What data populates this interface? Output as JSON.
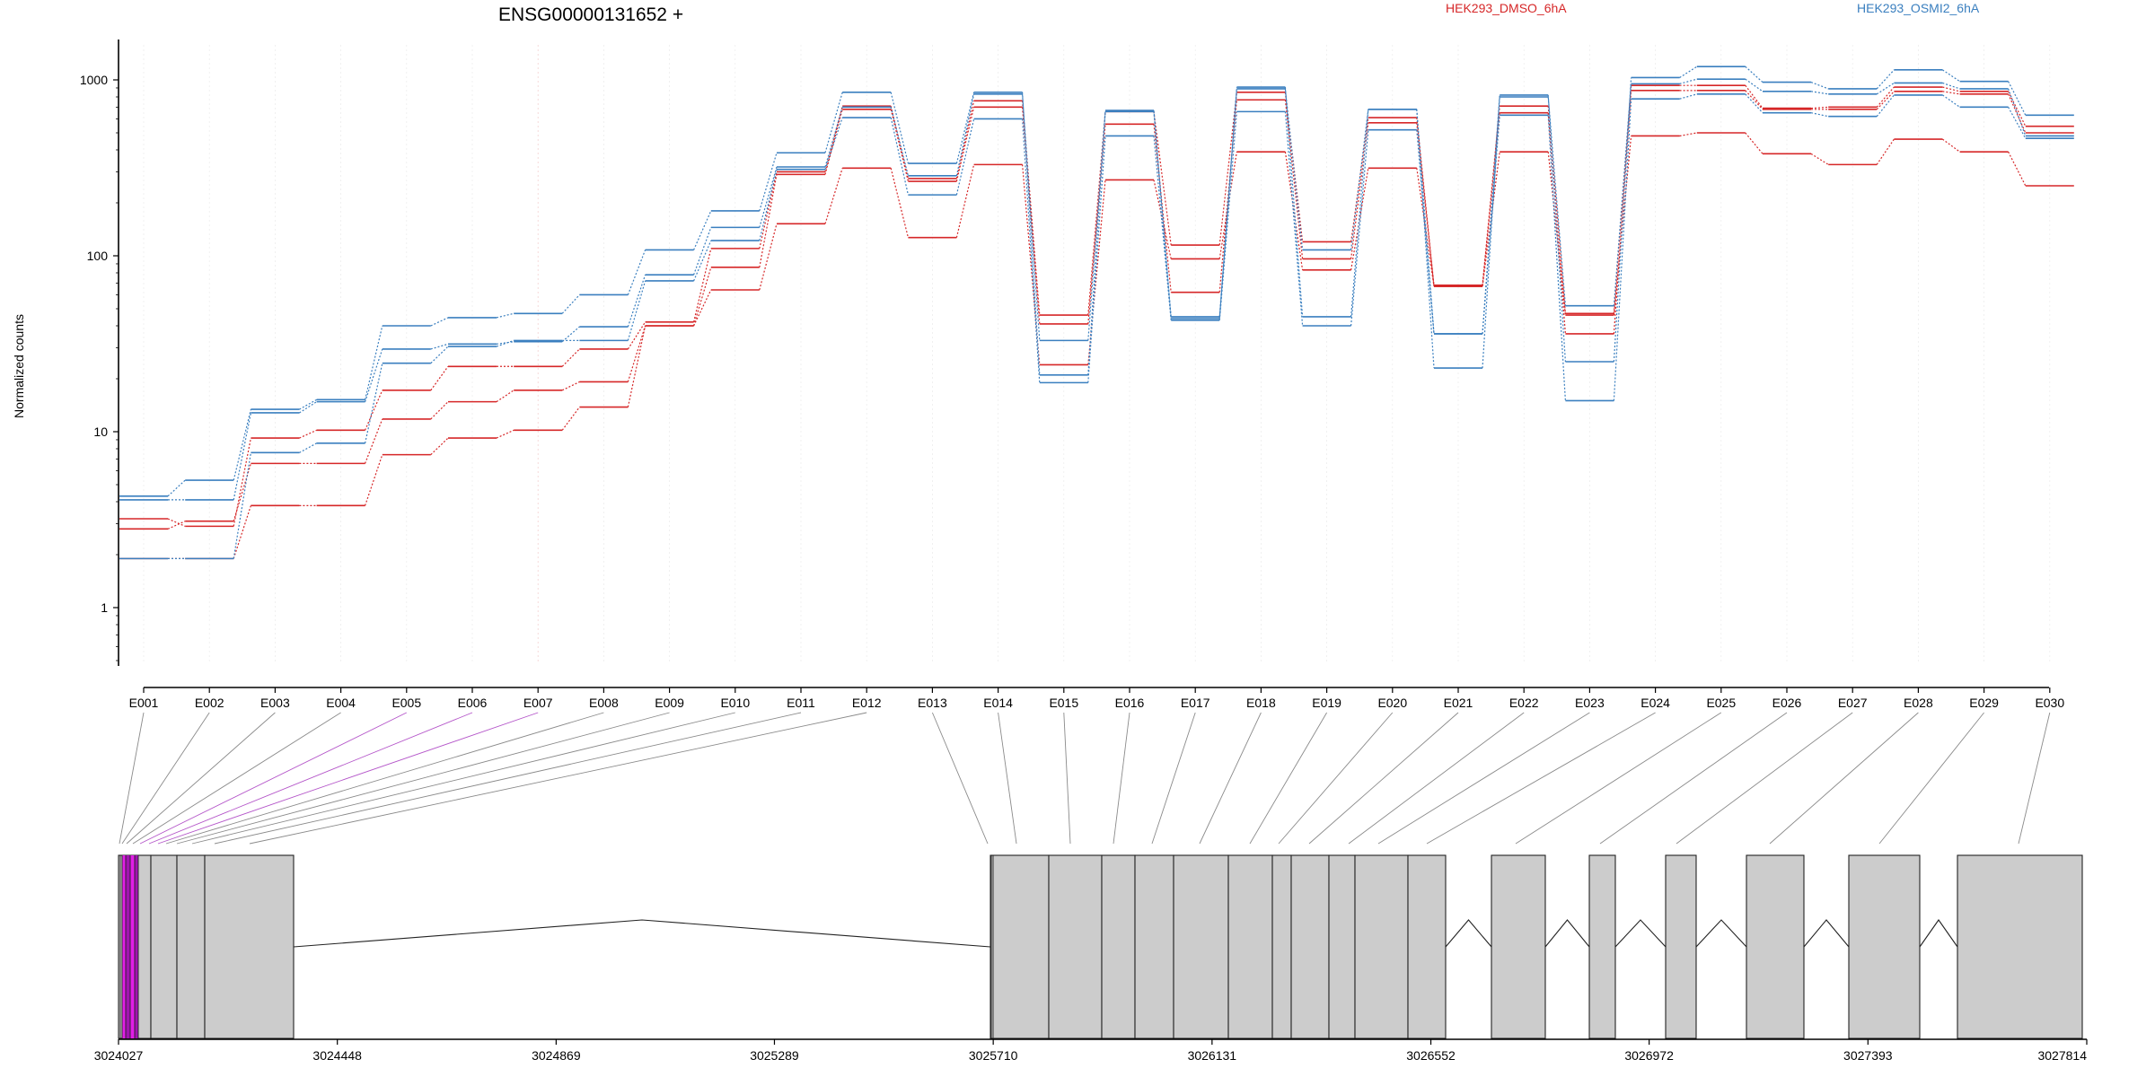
{
  "chart_data": {
    "type": "line",
    "title": "ENSG00000131652 +",
    "ylabel": "Normalized counts",
    "yscale": "log",
    "ylim": [
      0.45,
      1600
    ],
    "y_ticks": [
      {
        "value": 1,
        "label": "1"
      },
      {
        "value": 10,
        "label": "10"
      },
      {
        "value": 100,
        "label": "100"
      },
      {
        "value": 1000,
        "label": "1000"
      }
    ],
    "categories": [
      "E001",
      "E002",
      "E003",
      "E004",
      "E005",
      "E006",
      "E007",
      "E008",
      "E009",
      "E010",
      "E011",
      "E012",
      "E013",
      "E014",
      "E015",
      "E016",
      "E017",
      "E018",
      "E019",
      "E020",
      "E021",
      "E022",
      "E023",
      "E024",
      "E025",
      "E026",
      "E027",
      "E028",
      "E029",
      "E030"
    ],
    "groups": [
      {
        "name": "HEK293_DMSO_6hA",
        "color": "#d62728"
      },
      {
        "name": "HEK293_OSMI2_6hA",
        "color": "#3a7fbf"
      }
    ],
    "series": [
      {
        "group": "HEK293_DMSO_6hA",
        "values": [
          3.2,
          2.9,
          9.2,
          10.2,
          17.2,
          23.5,
          23.5,
          29.5,
          42,
          110,
          300,
          710,
          275,
          760,
          46,
          660,
          115,
          850,
          120,
          610,
          68,
          710,
          47,
          930,
          930,
          690,
          700,
          910,
          860,
          545
        ]
      },
      {
        "group": "HEK293_DMSO_6hA",
        "values": [
          2.8,
          3.1,
          6.6,
          6.6,
          11.8,
          14.8,
          17.2,
          19.2,
          40,
          86,
          290,
          680,
          265,
          700,
          41,
          560,
          62,
          770,
          96,
          570,
          67,
          650,
          36,
          870,
          870,
          680,
          680,
          860,
          830,
          500
        ]
      },
      {
        "group": "HEK293_DMSO_6hA",
        "values": [
          1.9,
          1.9,
          3.8,
          3.8,
          7.4,
          9.2,
          10.2,
          13.8,
          40,
          64,
          152,
          315,
          127,
          330,
          24,
          270,
          96,
          390,
          83,
          315,
          67,
          390,
          46,
          480,
          500,
          380,
          330,
          460,
          390,
          250
        ]
      },
      {
        "group": "HEK293_OSMI2_6hA",
        "values": [
          4.3,
          5.3,
          13.4,
          15.2,
          40,
          44.5,
          47,
          60,
          108,
          180,
          385,
          850,
          335,
          850,
          21,
          670,
          45,
          910,
          45,
          680,
          36,
          820,
          25,
          1030,
          1190,
          970,
          890,
          1140,
          980,
          630
        ]
      },
      {
        "group": "HEK293_OSMI2_6hA",
        "values": [
          4.1,
          4.1,
          12.8,
          14.8,
          29.5,
          31.5,
          32.5,
          39.5,
          78,
          145,
          320,
          700,
          285,
          830,
          33,
          660,
          44,
          890,
          108,
          680,
          23,
          800,
          52,
          950,
          1010,
          860,
          830,
          960,
          890,
          480
        ]
      },
      {
        "group": "HEK293_OSMI2_6hA",
        "values": [
          1.9,
          1.9,
          7.6,
          8.6,
          24.5,
          30.5,
          33,
          33,
          72,
          122,
          310,
          610,
          222,
          600,
          19,
          480,
          43,
          660,
          40,
          520,
          36,
          630,
          15,
          780,
          830,
          650,
          620,
          820,
          700,
          465
        ]
      }
    ],
    "genomic_axis": {
      "tick_labels": [
        "3024027",
        "3024448",
        "3024869",
        "3025289",
        "3025710",
        "3026131",
        "3026552",
        "3026972",
        "3027393",
        "3027814"
      ],
      "range": [
        3024027,
        3027814
      ]
    }
  }
}
